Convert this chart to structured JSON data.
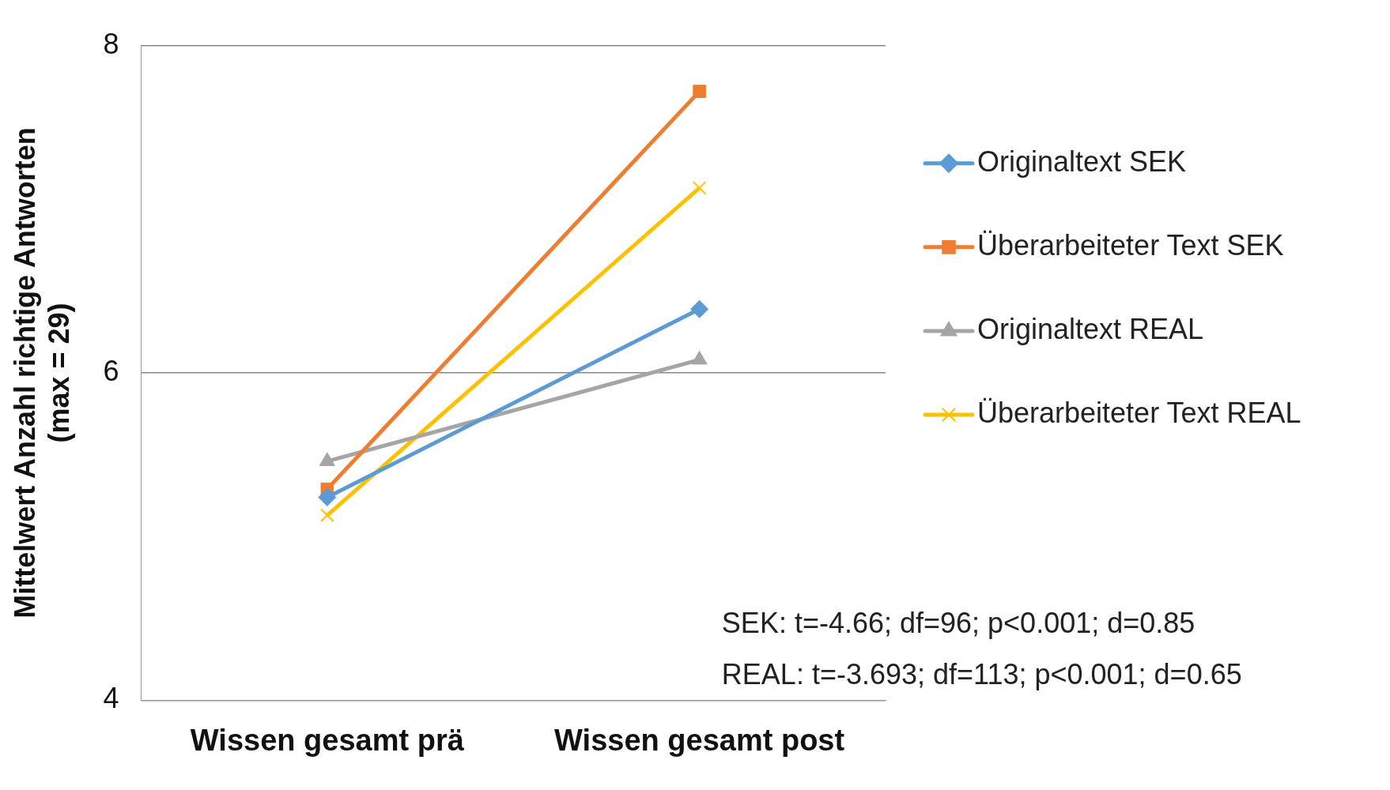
{
  "chart_data": {
    "type": "line",
    "ylabel": "Mittelwert Anzahl richtige Antworten\n(max = 29)",
    "categories": [
      "Wissen gesamt prä",
      "Wissen gesamt post"
    ],
    "series": [
      {
        "name": "Originaltext SEK",
        "color": "#5b9bd5",
        "marker": "diamond",
        "values": [
          5.24,
          6.39
        ]
      },
      {
        "name": "Überarbeiteter Text SEK",
        "color": "#ed7d31",
        "marker": "square",
        "values": [
          5.29,
          7.72
        ]
      },
      {
        "name": "Originaltext REAL",
        "color": "#a5a5a5",
        "marker": "triangle",
        "values": [
          5.46,
          6.08
        ]
      },
      {
        "name": "Überarbeiteter Text REAL",
        "color": "#ffc000",
        "marker": "cross",
        "values": [
          5.13,
          7.13
        ]
      }
    ],
    "ylim": [
      4,
      8
    ],
    "yticks": [
      4,
      6,
      8
    ],
    "grid": "y",
    "legend": "right",
    "annotations": [
      "SEK: t=-4.66; df=96; p<0.001; d=0.85",
      "REAL: t=-3.693; df=113; p<0.001; d=0.65"
    ]
  }
}
